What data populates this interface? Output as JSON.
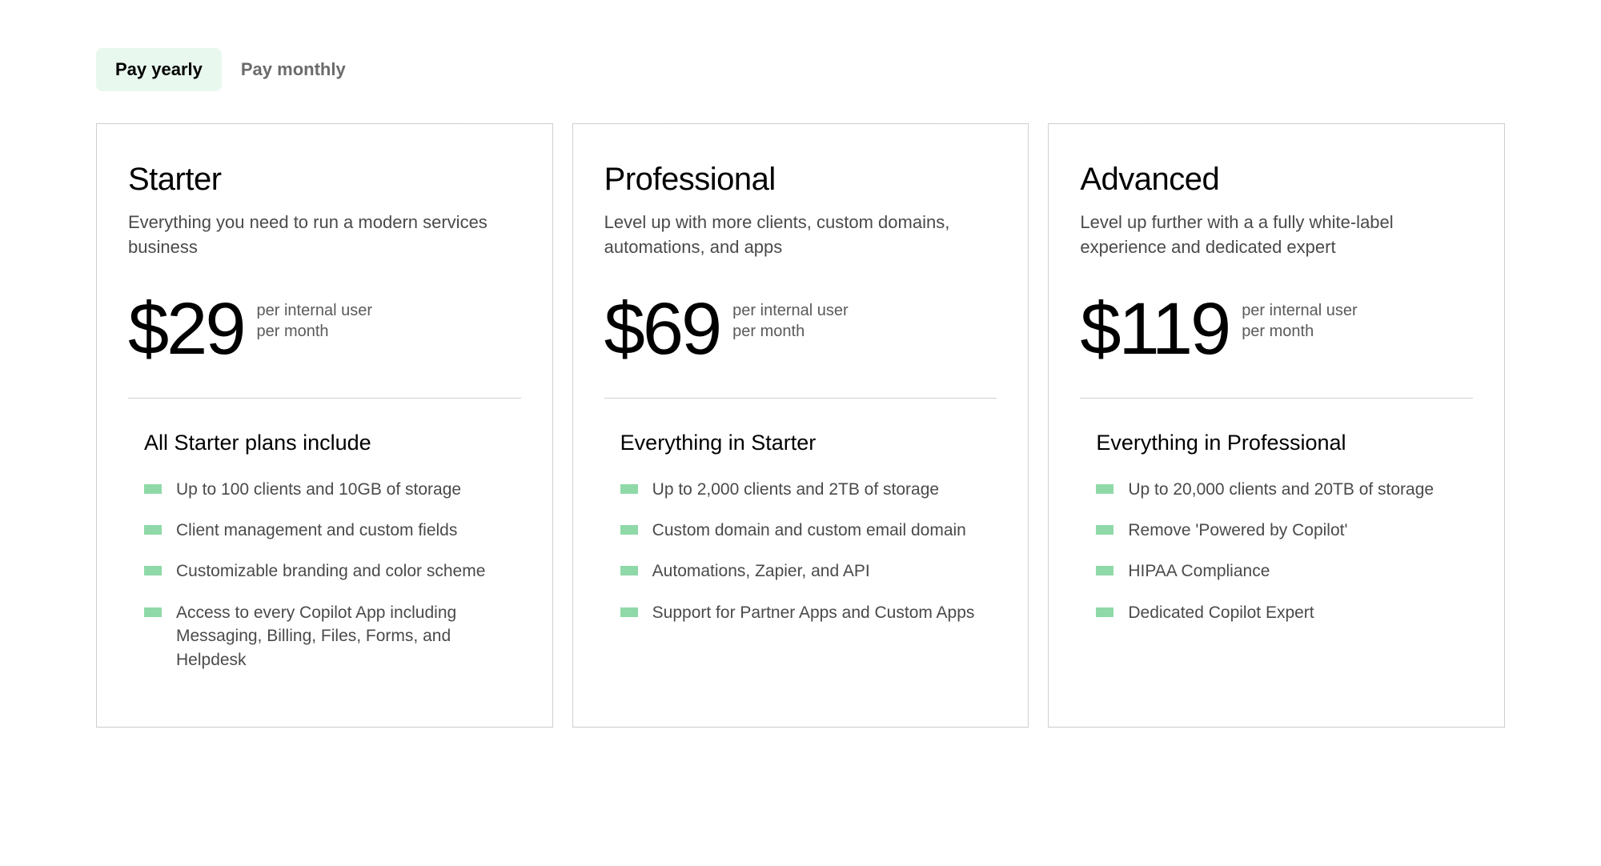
{
  "tabs": {
    "yearly": "Pay yearly",
    "monthly": "Pay monthly"
  },
  "colors": {
    "tab_active_bg": "#e8f8ee",
    "tab_active_text": "#000000",
    "tab_inactive_text": "#6b6b6b",
    "card_border": "#d0d0d0",
    "text_primary": "#000000",
    "text_secondary": "#4a4a4a",
    "text_meta": "#5a5a5a",
    "feature_marker": "#8fd9a8",
    "background": "#ffffff"
  },
  "typography": {
    "plan_title_size": 40,
    "plan_description_size": 22,
    "price_size": 92,
    "price_meta_size": 20,
    "features_heading_size": 27,
    "feature_text_size": 21,
    "tab_font_size": 22
  },
  "price_meta": {
    "line1": "per internal user",
    "line2": "per month"
  },
  "plans": [
    {
      "title": "Starter",
      "description": "Everything you need to run a modern services business",
      "price": "$29",
      "features_heading": "All Starter plans include",
      "features": [
        "Up to 100 clients and 10GB of storage",
        "Client management and custom fields",
        "Customizable branding and color scheme",
        "Access to every Copilot App including Messaging, Billing, Files, Forms, and Helpdesk"
      ]
    },
    {
      "title": "Professional",
      "description": "Level up with more clients, custom domains, automations, and apps",
      "price": "$69",
      "features_heading": "Everything in Starter",
      "features": [
        "Up to 2,000 clients and 2TB of storage",
        "Custom domain and custom email domain",
        "Automations, Zapier, and API",
        "Support for Partner Apps and Custom Apps"
      ]
    },
    {
      "title": "Advanced",
      "description": "Level up further with a a fully white-label experience and dedicated expert",
      "price": "$119",
      "features_heading": "Everything in Professional",
      "features": [
        "Up to 20,000 clients and 20TB of storage",
        "Remove 'Powered by Copilot'",
        "HIPAA Compliance",
        "Dedicated Copilot Expert"
      ]
    }
  ]
}
